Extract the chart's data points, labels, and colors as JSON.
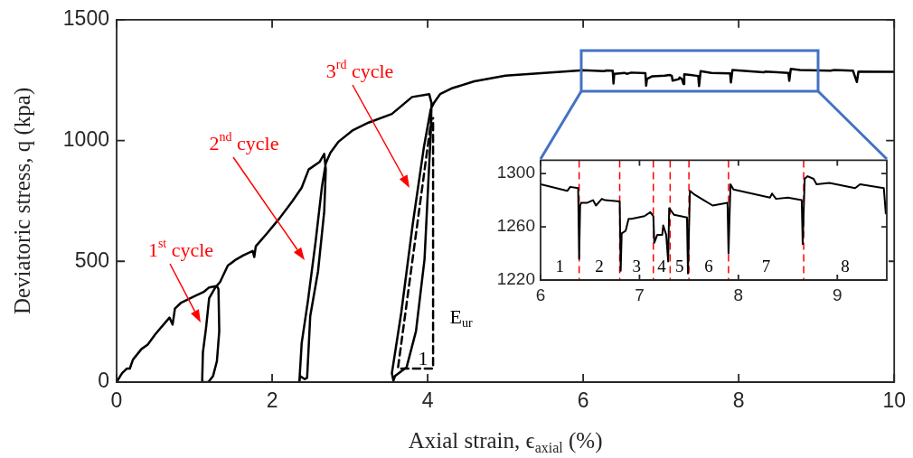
{
  "chart_data": [
    {
      "type": "line",
      "xlabel": "Axial strain, ϵ$_{axial}$ (%)",
      "ylabel": "Deviatoric stress, q (kpa)",
      "xlim": [
        0,
        10
      ],
      "ylim": [
        0,
        1500
      ],
      "xticks": [
        0,
        2,
        4,
        6,
        8,
        10
      ],
      "yticks": [
        0,
        500,
        1000,
        1500
      ],
      "grid": false,
      "marker": "none",
      "series": [
        {
          "color": "#000000",
          "x": [
            0,
            0.07,
            0.13,
            0.17,
            0.21,
            0.32,
            0.4,
            0.5,
            0.63,
            0.68,
            0.72,
            0.75,
            0.83,
            0.99,
            1.12,
            1.19,
            1.29,
            1.31,
            1.32,
            1.29,
            1.24,
            1.18,
            1.1,
            1.11,
            1.15,
            1.19,
            1.27,
            1.33,
            1.43,
            1.52,
            1.63,
            1.75,
            1.77,
            1.79,
            1.94,
            2.1,
            2.26,
            2.38,
            2.47,
            2.61,
            2.67,
            2.69,
            2.67,
            2.59,
            2.49,
            2.45,
            2.42,
            2.36,
            2.35,
            2.38,
            2.46,
            2.56,
            2.64,
            2.69,
            2.75,
            2.85,
            3.04,
            3.24,
            3.54,
            3.8,
            4.02,
            4.05,
            4.04,
            3.96,
            3.85,
            3.73,
            3.58,
            3.56,
            3.54,
            3.66,
            3.81,
            3.95,
            4.04,
            4.08,
            4.16,
            4.32,
            4.6,
            5.0,
            5.5,
            6.0,
            6.27,
            6.3,
            6.38,
            6.39,
            6.4,
            6.47,
            6.53,
            6.56,
            6.62,
            6.8,
            6.81,
            6.82,
            6.89,
            7.05,
            7.11,
            7.14,
            7.15,
            7.23,
            7.24,
            7.27,
            7.29,
            7.3,
            7.48,
            7.49,
            7.51,
            7.65,
            7.89,
            7.9,
            7.92,
            8.32,
            8.34,
            8.5,
            8.64,
            8.65,
            8.67,
            8.79,
            9.18,
            9.23,
            9.47,
            9.49,
            9.52,
            9.54,
            10
          ],
          "values": [
            0,
            37,
            56,
            56,
            93,
            137,
            155,
            199,
            248,
            267,
            238,
            304,
            329,
            354,
            373,
            392,
            398,
            385,
            211,
            87,
            25,
            0,
            0,
            124,
            224,
            347,
            392,
            414,
            482,
            504,
            525,
            543,
            518,
            562,
            618,
            680,
            749,
            805,
            880,
            911,
            945,
            880,
            706,
            458,
            273,
            18,
            12,
            25,
            0,
            161,
            335,
            584,
            807,
            906,
            950,
            994,
            1043,
            1074,
            1110,
            1180,
            1192,
            1155,
            1031,
            509,
            211,
            62,
            25,
            6,
            37,
            286,
            658,
            969,
            1130,
            1155,
            1192,
            1217,
            1245,
            1268,
            1280,
            1291,
            1287,
            1290,
            1289,
            1236,
            1276,
            1278,
            1280,
            1276,
            1281,
            1279,
            1227,
            1255,
            1266,
            1268,
            1271,
            1268,
            1248,
            1254,
            1261,
            1254,
            1234,
            1274,
            1267,
            1225,
            1287,
            1280,
            1278,
            1240,
            1292,
            1282,
            1285,
            1282,
            1280,
            1247,
            1296,
            1292,
            1289,
            1292,
            1289,
            1270,
            1242,
            1285,
            1284
          ]
        },
        {
          "type": "line",
          "line_style": "dashed",
          "color": "#000000",
          "x": [
            3.62,
            4.05
          ],
          "values": [
            62,
            1093
          ]
        },
        {
          "type": "line",
          "line_style": "dashed",
          "color": "#000000",
          "x": [
            3.66,
            4.07,
            4.07
          ],
          "values": [
            56,
            56,
            1093
          ]
        }
      ],
      "annotations": [
        "1$^{st}$ cycle",
        "2$^{nd}$ cycle",
        "3$^{rd}$ cycle",
        "E$_{ur}$",
        "1"
      ]
    },
    {
      "type": "line",
      "xlim": [
        6,
        9.5
      ],
      "ylim": [
        1220,
        1310
      ],
      "xticks": [
        6,
        7,
        8,
        9
      ],
      "yticks": [
        1220,
        1260,
        1300
      ],
      "grid": false,
      "marker": "none",
      "series": [
        {
          "color": "#000000",
          "x": [
            6.0,
            6.27,
            6.3,
            6.38,
            6.39,
            6.4,
            6.41,
            6.47,
            6.53,
            6.56,
            6.62,
            6.65,
            6.8,
            6.81,
            6.82,
            6.86,
            6.89,
            6.92,
            7.05,
            7.11,
            7.14,
            7.15,
            7.18,
            7.23,
            7.24,
            7.27,
            7.29,
            7.3,
            7.35,
            7.48,
            7.49,
            7.51,
            7.56,
            7.65,
            7.74,
            7.89,
            7.9,
            7.92,
            7.95,
            8.32,
            8.34,
            8.38,
            8.5,
            8.64,
            8.65,
            8.67,
            8.7,
            8.76,
            8.79,
            8.92,
            9.18,
            9.23,
            9.47,
            9.49
          ],
          "values": [
            1292,
            1287,
            1290,
            1289,
            1236,
            1276,
            1278,
            1278,
            1280,
            1276,
            1281,
            1280,
            1279,
            1227,
            1255,
            1257,
            1266,
            1266,
            1268,
            1271,
            1268,
            1248,
            1254,
            1254,
            1261,
            1254,
            1234,
            1274,
            1269,
            1267,
            1225,
            1287,
            1284,
            1280,
            1276,
            1278,
            1240,
            1292,
            1288,
            1282,
            1285,
            1281,
            1282,
            1280,
            1247,
            1296,
            1298,
            1296,
            1292,
            1293,
            1289,
            1292,
            1289,
            1270
          ]
        }
      ],
      "ref_lines": [
        {
          "axis": "x",
          "value": 6.39,
          "color": "#ff0000",
          "line_style": "dashed"
        },
        {
          "axis": "x",
          "value": 6.8,
          "color": "#ff0000",
          "line_style": "dashed"
        },
        {
          "axis": "x",
          "value": 7.14,
          "color": "#ff0000",
          "line_style": "dashed"
        },
        {
          "axis": "x",
          "value": 7.31,
          "color": "#ff0000",
          "line_style": "dashed"
        },
        {
          "axis": "x",
          "value": 7.5,
          "color": "#ff0000",
          "line_style": "dashed"
        },
        {
          "axis": "x",
          "value": 7.9,
          "color": "#ff0000",
          "line_style": "dashed"
        },
        {
          "axis": "x",
          "value": 8.66,
          "color": "#ff0000",
          "line_style": "dashed"
        }
      ],
      "annotations": [
        "1",
        "2",
        "3",
        "4",
        "5",
        "6",
        "7",
        "8"
      ]
    }
  ]
}
